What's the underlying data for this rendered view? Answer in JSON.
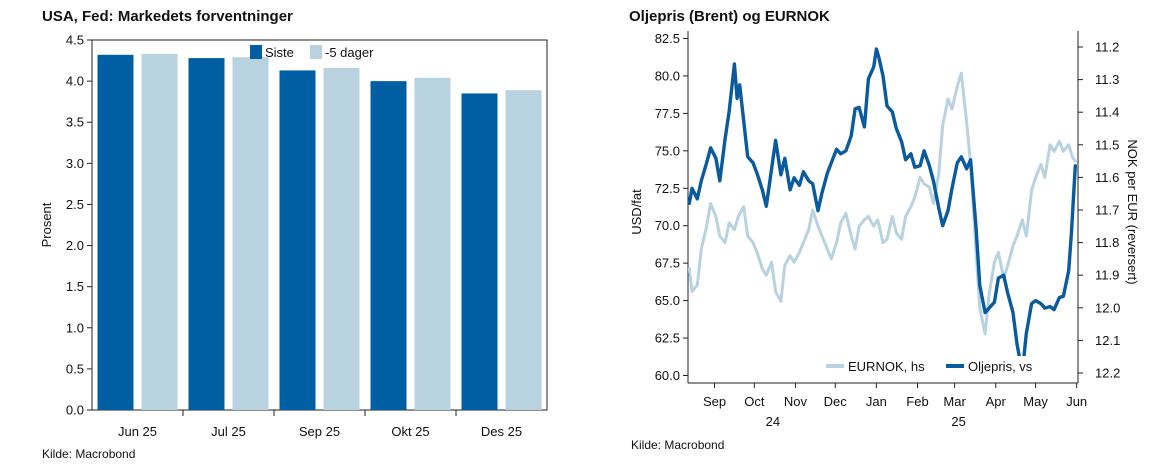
{
  "left": {
    "title": "USA, Fed: Markedets forventninger",
    "source": "Kilde: Macrobond"
  },
  "right": {
    "title": "Oljepris (Brent) og EURNOK",
    "source": "Kilde: Macrobond"
  },
  "chart_data": [
    {
      "type": "bar",
      "title": "USA, Fed: Markedets forventninger",
      "ylabel": "Prosent",
      "ylim": [
        0,
        4.5
      ],
      "yticks": [
        "0.0",
        "0.5",
        "1.0",
        "1.5",
        "2.0",
        "2.5",
        "3.0",
        "3.5",
        "4.0",
        "4.5"
      ],
      "categories": [
        "Jun 25",
        "Jul 25",
        "Sep 25",
        "Okt 25",
        "Des 25"
      ],
      "series": [
        {
          "name": "Siste",
          "color": "#005ea3",
          "values": [
            4.32,
            4.28,
            4.13,
            4.0,
            3.85
          ]
        },
        {
          "name": "-5 dager",
          "color": "#b9d2df",
          "values": [
            4.33,
            4.29,
            4.16,
            4.04,
            3.89
          ]
        }
      ],
      "legend": "top-center",
      "grid": false
    },
    {
      "type": "line",
      "title": "Oljepris (Brent) og EURNOK",
      "ylabel_left": "USD/fat",
      "ylabel_right": "NOK per EUR (reversert)",
      "ylim_left": [
        59.5,
        83.0
      ],
      "ylim_right": [
        11.2,
        12.2
      ],
      "right_reversed": true,
      "yticks_left": [
        "60.0",
        "62.5",
        "65.0",
        "67.5",
        "70.0",
        "72.5",
        "75.0",
        "77.5",
        "80.0",
        "82.5"
      ],
      "yticks_right": [
        "11.2",
        "11.3",
        "11.4",
        "11.5",
        "11.6",
        "11.7",
        "11.8",
        "11.9",
        "12.0",
        "12.1",
        "12.2"
      ],
      "x_range": [
        "2024-08-26",
        "2025-06-16"
      ],
      "month_ticks": [
        {
          "label": "Sep",
          "date": "2024-09-15"
        },
        {
          "label": "Oct",
          "date": "2024-10-15"
        },
        {
          "label": "Nov",
          "date": "2024-11-15"
        },
        {
          "label": "Dec",
          "date": "2024-12-15"
        },
        {
          "label": "Jan",
          "date": "2025-01-15"
        },
        {
          "label": "Feb",
          "date": "2025-02-15"
        },
        {
          "label": "Mar",
          "date": "2025-03-15"
        },
        {
          "label": "Apr",
          "date": "2025-04-15"
        },
        {
          "label": "May",
          "date": "2025-05-15"
        },
        {
          "label": "Jun",
          "date": "2025-06-15"
        }
      ],
      "year_labels": [
        {
          "label": "24",
          "date": "2024-10-29"
        },
        {
          "label": "25",
          "date": "2025-03-18"
        }
      ],
      "legend": "bottom-right",
      "grid": false,
      "series": [
        {
          "name": "EURNOK, hs",
          "axis": "right",
          "color": "#b9d2df",
          "points": [
            [
              "2024-08-27",
              11.88
            ],
            [
              "2024-08-29",
              11.95
            ],
            [
              "2024-09-02",
              11.93
            ],
            [
              "2024-09-05",
              11.82
            ],
            [
              "2024-09-09",
              11.75
            ],
            [
              "2024-09-12",
              11.68
            ],
            [
              "2024-09-16",
              11.72
            ],
            [
              "2024-09-19",
              11.78
            ],
            [
              "2024-09-23",
              11.8
            ],
            [
              "2024-09-26",
              11.74
            ],
            [
              "2024-09-30",
              11.76
            ],
            [
              "2024-10-03",
              11.72
            ],
            [
              "2024-10-07",
              11.69
            ],
            [
              "2024-10-10",
              11.78
            ],
            [
              "2024-10-14",
              11.8
            ],
            [
              "2024-10-17",
              11.83
            ],
            [
              "2024-10-21",
              11.88
            ],
            [
              "2024-10-24",
              11.9
            ],
            [
              "2024-10-28",
              11.86
            ],
            [
              "2024-10-31",
              11.95
            ],
            [
              "2024-11-04",
              11.98
            ],
            [
              "2024-11-07",
              11.87
            ],
            [
              "2024-11-11",
              11.84
            ],
            [
              "2024-11-14",
              11.86
            ],
            [
              "2024-11-18",
              11.83
            ],
            [
              "2024-11-21",
              11.8
            ],
            [
              "2024-11-25",
              11.76
            ],
            [
              "2024-11-28",
              11.7
            ],
            [
              "2024-12-02",
              11.75
            ],
            [
              "2024-12-05",
              11.78
            ],
            [
              "2024-12-09",
              11.82
            ],
            [
              "2024-12-12",
              11.85
            ],
            [
              "2024-12-16",
              11.8
            ],
            [
              "2024-12-19",
              11.74
            ],
            [
              "2024-12-23",
              11.71
            ],
            [
              "2024-12-27",
              11.78
            ],
            [
              "2024-12-30",
              11.82
            ],
            [
              "2025-01-02",
              11.75
            ],
            [
              "2025-01-06",
              11.73
            ],
            [
              "2025-01-09",
              11.72
            ],
            [
              "2025-01-13",
              11.75
            ],
            [
              "2025-01-16",
              11.73
            ],
            [
              "2025-01-20",
              11.8
            ],
            [
              "2025-01-23",
              11.79
            ],
            [
              "2025-01-27",
              11.72
            ],
            [
              "2025-01-30",
              11.77
            ],
            [
              "2025-02-03",
              11.79
            ],
            [
              "2025-02-06",
              11.72
            ],
            [
              "2025-02-10",
              11.69
            ],
            [
              "2025-02-13",
              11.66
            ],
            [
              "2025-02-17",
              11.6
            ],
            [
              "2025-02-20",
              11.62
            ],
            [
              "2025-02-24",
              11.63
            ],
            [
              "2025-02-27",
              11.68
            ],
            [
              "2025-03-03",
              11.59
            ],
            [
              "2025-03-06",
              11.44
            ],
            [
              "2025-03-10",
              11.36
            ],
            [
              "2025-03-13",
              11.39
            ],
            [
              "2025-03-17",
              11.32
            ],
            [
              "2025-03-20",
              11.28
            ],
            [
              "2025-03-24",
              11.43
            ],
            [
              "2025-03-27",
              11.56
            ],
            [
              "2025-03-31",
              11.82
            ],
            [
              "2025-04-03",
              12.0
            ],
            [
              "2025-04-07",
              12.08
            ],
            [
              "2025-04-10",
              11.96
            ],
            [
              "2025-04-14",
              11.86
            ],
            [
              "2025-04-17",
              11.83
            ],
            [
              "2025-04-21",
              11.91
            ],
            [
              "2025-04-24",
              11.87
            ],
            [
              "2025-04-28",
              11.81
            ],
            [
              "2025-05-01",
              11.78
            ],
            [
              "2025-05-05",
              11.73
            ],
            [
              "2025-05-08",
              11.78
            ],
            [
              "2025-05-12",
              11.64
            ],
            [
              "2025-05-15",
              11.6
            ],
            [
              "2025-05-19",
              11.56
            ],
            [
              "2025-05-22",
              11.6
            ],
            [
              "2025-05-26",
              11.5
            ],
            [
              "2025-05-29",
              11.52
            ],
            [
              "2025-06-02",
              11.49
            ],
            [
              "2025-06-05",
              11.52
            ],
            [
              "2025-06-09",
              11.5
            ],
            [
              "2025-06-12",
              11.54
            ],
            [
              "2025-06-14",
              11.55
            ]
          ]
        },
        {
          "name": "Oljepris, vs",
          "axis": "left",
          "color": "#0a5a9e",
          "points": [
            [
              "2024-08-27",
              71.5
            ],
            [
              "2024-08-29",
              72.5
            ],
            [
              "2024-09-02",
              71.8
            ],
            [
              "2024-09-05",
              73.0
            ],
            [
              "2024-09-09",
              74.2
            ],
            [
              "2024-09-12",
              75.2
            ],
            [
              "2024-09-16",
              74.5
            ],
            [
              "2024-09-19",
              73.0
            ],
            [
              "2024-09-23",
              75.8
            ],
            [
              "2024-09-26",
              77.6
            ],
            [
              "2024-09-30",
              80.8
            ],
            [
              "2024-10-02",
              78.5
            ],
            [
              "2024-10-04",
              79.4
            ],
            [
              "2024-10-07",
              77.0
            ],
            [
              "2024-10-10",
              74.6
            ],
            [
              "2024-10-14",
              74.2
            ],
            [
              "2024-10-17",
              73.5
            ],
            [
              "2024-10-21",
              72.4
            ],
            [
              "2024-10-24",
              71.3
            ],
            [
              "2024-10-28",
              73.8
            ],
            [
              "2024-10-31",
              75.7
            ],
            [
              "2024-11-04",
              73.4
            ],
            [
              "2024-11-07",
              74.5
            ],
            [
              "2024-11-11",
              72.4
            ],
            [
              "2024-11-14",
              73.2
            ],
            [
              "2024-11-18",
              72.7
            ],
            [
              "2024-11-21",
              73.6
            ],
            [
              "2024-11-25",
              73.0
            ],
            [
              "2024-11-28",
              72.8
            ],
            [
              "2024-12-02",
              71.0
            ],
            [
              "2024-12-05",
              72.2
            ],
            [
              "2024-12-09",
              73.5
            ],
            [
              "2024-12-12",
              74.2
            ],
            [
              "2024-12-16",
              75.1
            ],
            [
              "2024-12-19",
              74.8
            ],
            [
              "2024-12-23",
              75.0
            ],
            [
              "2024-12-27",
              76.0
            ],
            [
              "2024-12-30",
              77.8
            ],
            [
              "2025-01-02",
              77.9
            ],
            [
              "2025-01-06",
              76.6
            ],
            [
              "2025-01-09",
              79.8
            ],
            [
              "2025-01-13",
              80.6
            ],
            [
              "2025-01-15",
              81.8
            ],
            [
              "2025-01-17",
              81.2
            ],
            [
              "2025-01-20",
              80.0
            ],
            [
              "2025-01-23",
              78.0
            ],
            [
              "2025-01-27",
              77.6
            ],
            [
              "2025-01-30",
              76.5
            ],
            [
              "2025-02-03",
              75.6
            ],
            [
              "2025-02-06",
              74.4
            ],
            [
              "2025-02-10",
              74.8
            ],
            [
              "2025-02-13",
              73.9
            ],
            [
              "2025-02-17",
              74.0
            ],
            [
              "2025-02-20",
              75.0
            ],
            [
              "2025-02-24",
              74.0
            ],
            [
              "2025-02-27",
              73.0
            ],
            [
              "2025-03-03",
              71.2
            ],
            [
              "2025-03-06",
              70.0
            ],
            [
              "2025-03-10",
              71.0
            ],
            [
              "2025-03-13",
              72.5
            ],
            [
              "2025-03-17",
              74.2
            ],
            [
              "2025-03-20",
              74.6
            ],
            [
              "2025-03-24",
              73.8
            ],
            [
              "2025-03-27",
              74.4
            ],
            [
              "2025-03-31",
              70.0
            ],
            [
              "2025-04-03",
              66.0
            ],
            [
              "2025-04-07",
              64.2
            ],
            [
              "2025-04-10",
              64.5
            ],
            [
              "2025-04-14",
              64.9
            ],
            [
              "2025-04-17",
              66.5
            ],
            [
              "2025-04-21",
              66.7
            ],
            [
              "2025-04-24",
              65.5
            ],
            [
              "2025-04-28",
              64.2
            ],
            [
              "2025-05-01",
              62.1
            ],
            [
              "2025-05-05",
              60.2
            ],
            [
              "2025-05-08",
              62.8
            ],
            [
              "2025-05-12",
              64.8
            ],
            [
              "2025-05-15",
              65.0
            ],
            [
              "2025-05-19",
              64.8
            ],
            [
              "2025-05-22",
              64.5
            ],
            [
              "2025-05-26",
              64.6
            ],
            [
              "2025-05-29",
              64.4
            ],
            [
              "2025-06-02",
              65.2
            ],
            [
              "2025-06-05",
              65.3
            ],
            [
              "2025-06-09",
              67.0
            ],
            [
              "2025-06-11",
              69.5
            ],
            [
              "2025-06-13",
              72.5
            ],
            [
              "2025-06-14",
              74.0
            ]
          ]
        }
      ]
    }
  ]
}
